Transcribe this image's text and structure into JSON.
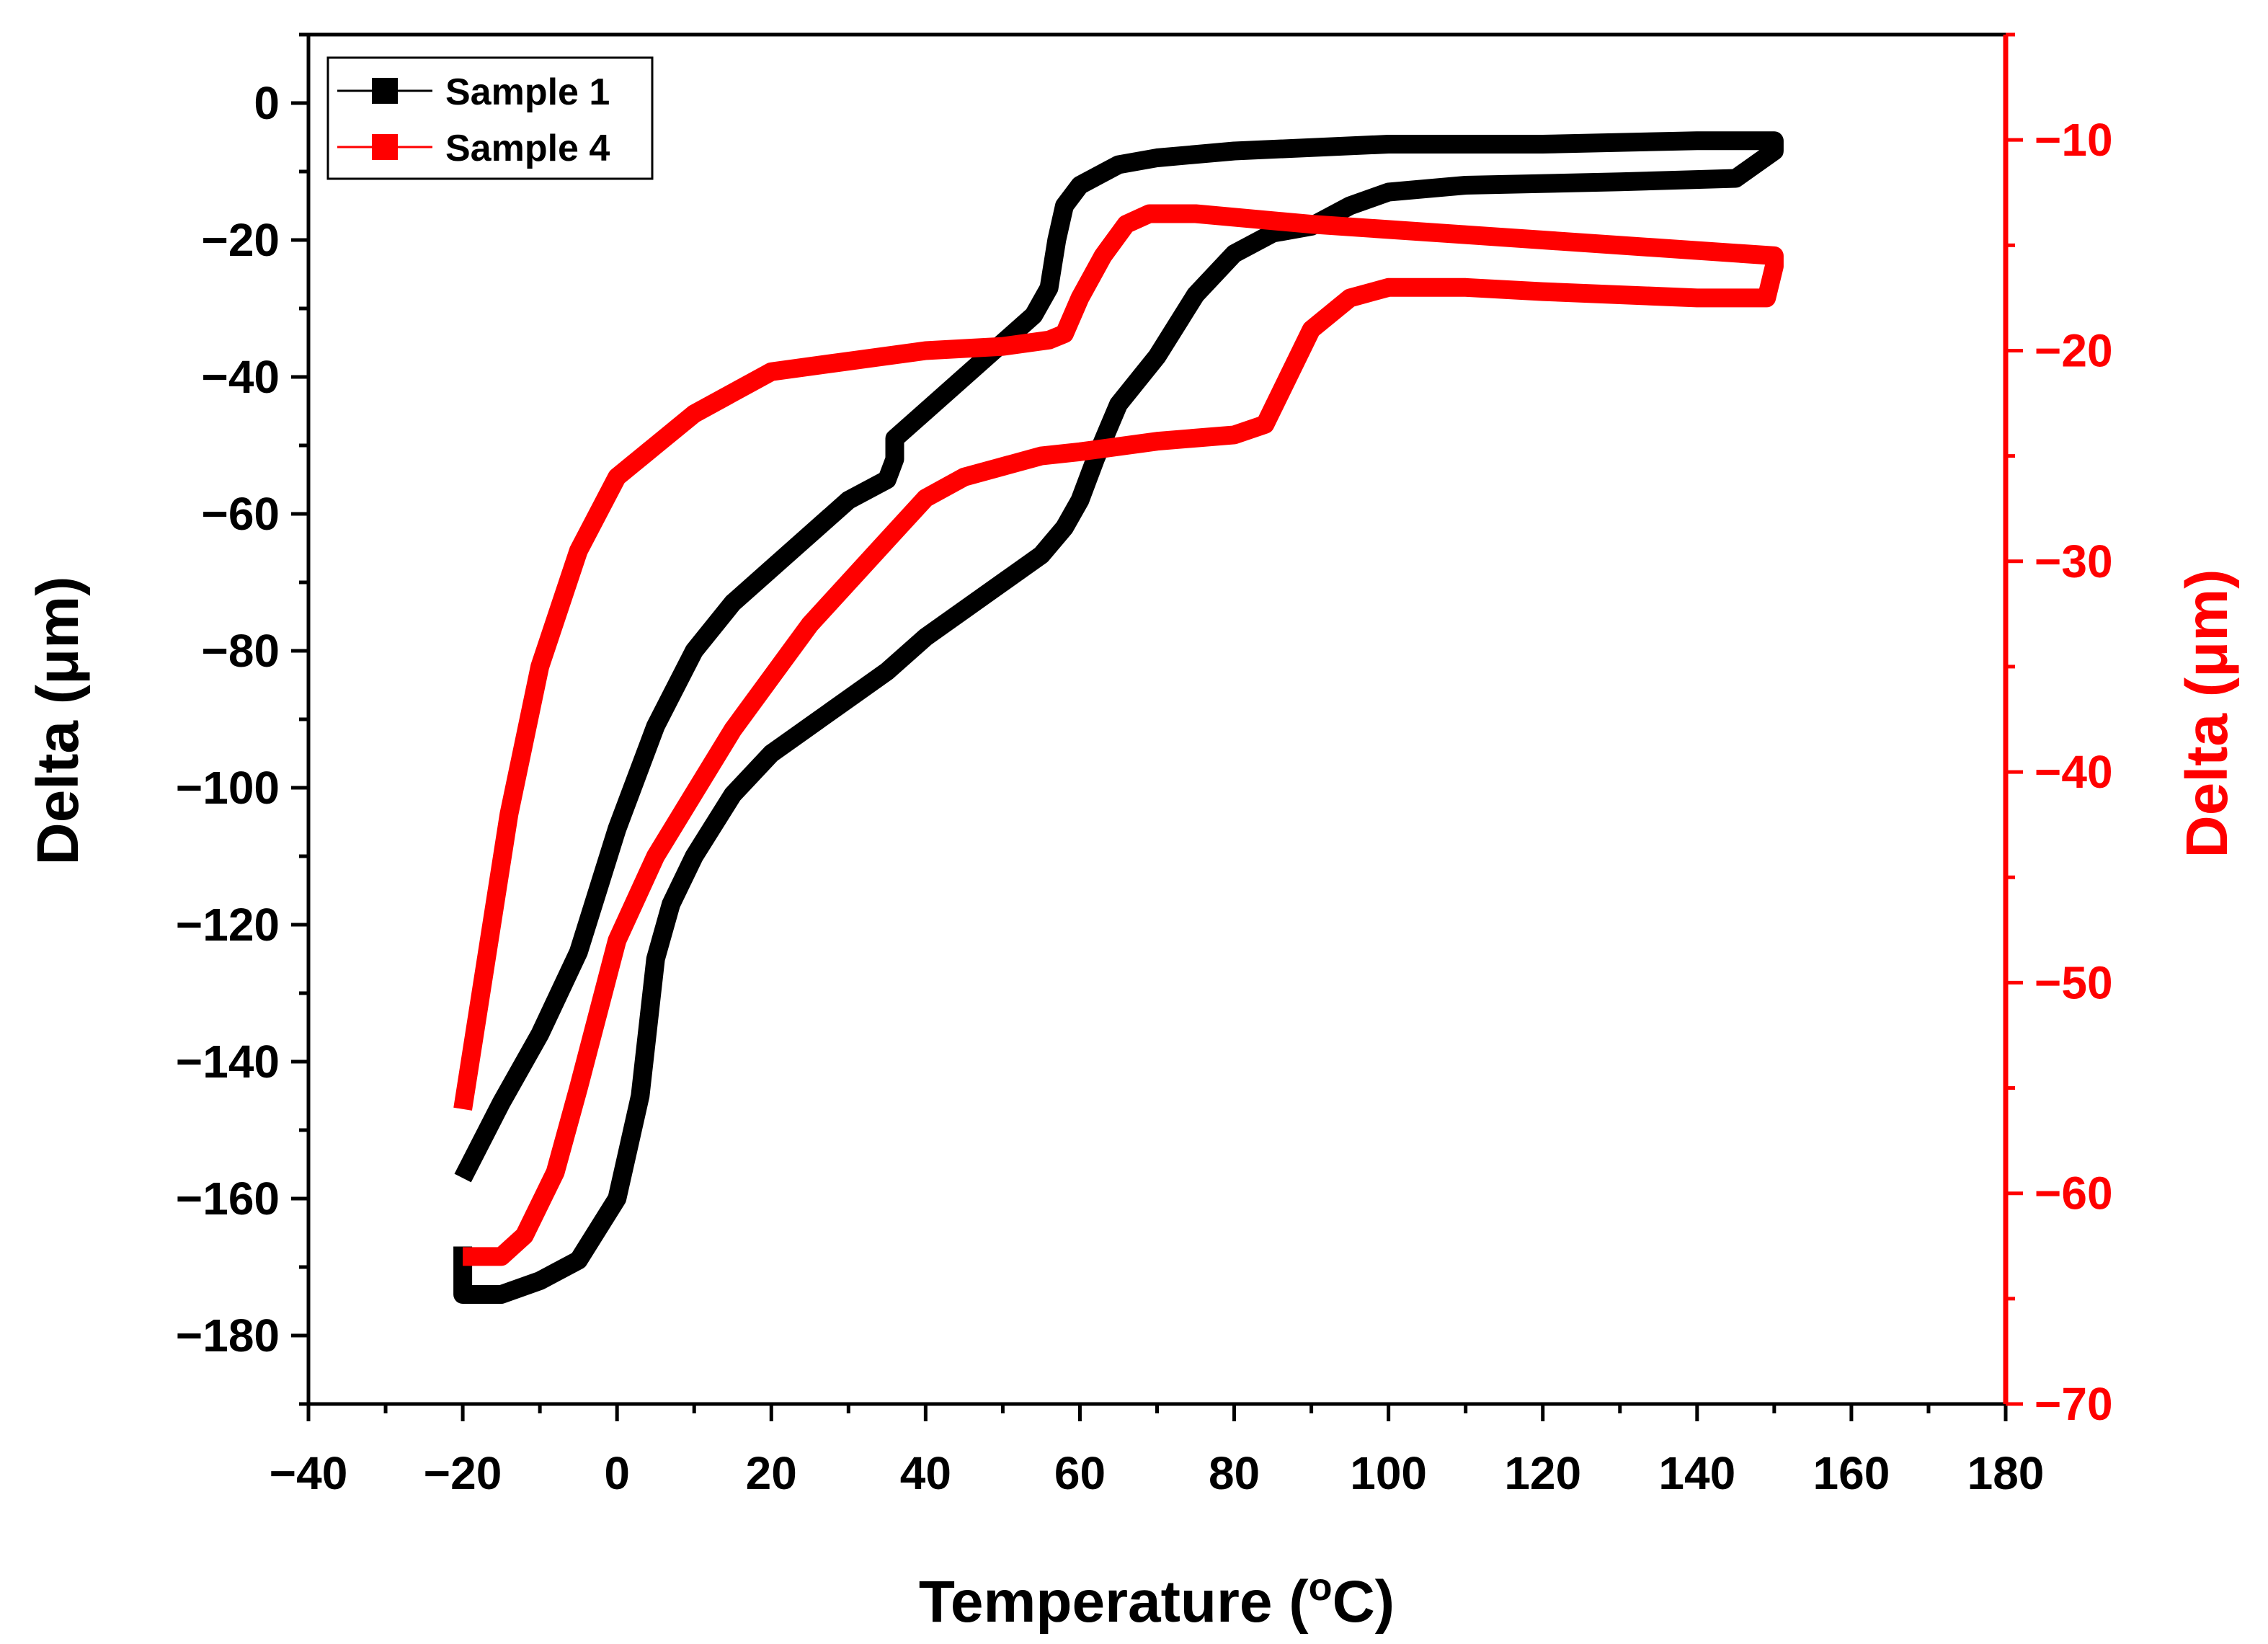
{
  "chart_data": {
    "type": "line",
    "title": "",
    "xlabel": "Temperature (°C)",
    "xlabel_parts": {
      "text": "Temperature (",
      "sup": "o",
      "unit": "C)"
    },
    "ylabel_left": "Delta (μm)",
    "ylabel_right": "Delta (μm)",
    "xlim": [
      -40,
      180
    ],
    "ylim_left": [
      -190,
      10
    ],
    "ylim_right": [
      -70,
      -5
    ],
    "x_ticks": [
      -40,
      -20,
      0,
      20,
      40,
      60,
      80,
      100,
      120,
      140,
      160,
      180
    ],
    "x_tick_labels": [
      "−40",
      "−20",
      "0",
      "20",
      "40",
      "60",
      "80",
      "100",
      "120",
      "140",
      "160",
      "180"
    ],
    "y_left_ticks": [
      0,
      -20,
      -40,
      -60,
      -80,
      -100,
      -120,
      -140,
      -160,
      -180
    ],
    "y_left_tick_labels": [
      "0",
      "−20",
      "−40",
      "−60",
      "−80",
      "−100",
      "−120",
      "−140",
      "−160",
      "−180"
    ],
    "y_right_ticks": [
      -10,
      -20,
      -30,
      -40,
      -50,
      -60,
      -70
    ],
    "y_right_tick_labels": [
      "−10",
      "−20",
      "−30",
      "−40",
      "−50",
      "−60",
      "−70"
    ],
    "legend_position": "top-left",
    "series": [
      {
        "name": "Sample 1",
        "axis": "left",
        "color": "#000000",
        "points": [
          [
            -20,
            -157
          ],
          [
            -15,
            -146
          ],
          [
            -10,
            -136
          ],
          [
            -5,
            -124
          ],
          [
            0,
            -106
          ],
          [
            5,
            -91
          ],
          [
            10,
            -80
          ],
          [
            15,
            -73
          ],
          [
            20,
            -68
          ],
          [
            25,
            -63
          ],
          [
            30,
            -58
          ],
          [
            35,
            -55
          ],
          [
            36,
            -52
          ],
          [
            36,
            -49
          ],
          [
            40,
            -45
          ],
          [
            45,
            -40
          ],
          [
            50,
            -35
          ],
          [
            54,
            -31
          ],
          [
            56,
            -27
          ],
          [
            57,
            -20
          ],
          [
            58,
            -15
          ],
          [
            60,
            -12
          ],
          [
            65,
            -9
          ],
          [
            70,
            -8
          ],
          [
            80,
            -7
          ],
          [
            100,
            -6
          ],
          [
            120,
            -6
          ],
          [
            140,
            -5.5
          ],
          [
            150,
            -5.5
          ],
          [
            150,
            -7
          ],
          [
            145,
            -11
          ],
          [
            130,
            -11.5
          ],
          [
            110,
            -12
          ],
          [
            100,
            -13
          ],
          [
            95,
            -15
          ],
          [
            90,
            -18
          ],
          [
            85,
            -19
          ],
          [
            80,
            -22
          ],
          [
            75,
            -28
          ],
          [
            70,
            -37
          ],
          [
            65,
            -44
          ],
          [
            62,
            -52
          ],
          [
            60,
            -58
          ],
          [
            58,
            -62
          ],
          [
            55,
            -66
          ],
          [
            50,
            -70
          ],
          [
            45,
            -74
          ],
          [
            40,
            -78
          ],
          [
            35,
            -83
          ],
          [
            30,
            -87
          ],
          [
            25,
            -91
          ],
          [
            20,
            -95
          ],
          [
            15,
            -101
          ],
          [
            10,
            -110
          ],
          [
            7,
            -117
          ],
          [
            5,
            -125
          ],
          [
            3,
            -145
          ],
          [
            0,
            -160
          ],
          [
            -5,
            -169
          ],
          [
            -10,
            -172
          ],
          [
            -15,
            -174
          ],
          [
            -20,
            -174
          ],
          [
            -20,
            -167
          ]
        ]
      },
      {
        "name": "Sample 4",
        "axis": "right",
        "color": "#ff0000",
        "points": [
          [
            -20,
            -56
          ],
          [
            -17,
            -49
          ],
          [
            -14,
            -42
          ],
          [
            -10,
            -35
          ],
          [
            -5,
            -29.5
          ],
          [
            0,
            -26
          ],
          [
            5,
            -24.5
          ],
          [
            10,
            -23
          ],
          [
            15,
            -22
          ],
          [
            20,
            -21
          ],
          [
            30,
            -20.5
          ],
          [
            40,
            -20
          ],
          [
            50,
            -19.8
          ],
          [
            56,
            -19.5
          ],
          [
            58,
            -19.2
          ],
          [
            60,
            -17.5
          ],
          [
            63,
            -15.5
          ],
          [
            66,
            -14
          ],
          [
            69,
            -13.5
          ],
          [
            75,
            -13.5
          ],
          [
            90,
            -14
          ],
          [
            110,
            -14.5
          ],
          [
            130,
            -15
          ],
          [
            150,
            -15.5
          ],
          [
            150,
            -16
          ],
          [
            149,
            -17.5
          ],
          [
            140,
            -17.5
          ],
          [
            120,
            -17.2
          ],
          [
            110,
            -17
          ],
          [
            100,
            -17
          ],
          [
            95,
            -17.5
          ],
          [
            90,
            -19
          ],
          [
            86,
            -22
          ],
          [
            84,
            -23.5
          ],
          [
            80,
            -24
          ],
          [
            70,
            -24.3
          ],
          [
            60,
            -24.8
          ],
          [
            55,
            -25
          ],
          [
            50,
            -25.5
          ],
          [
            45,
            -26
          ],
          [
            40,
            -27
          ],
          [
            35,
            -29
          ],
          [
            30,
            -31
          ],
          [
            25,
            -33
          ],
          [
            20,
            -35.5
          ],
          [
            15,
            -38
          ],
          [
            10,
            -41
          ],
          [
            5,
            -44
          ],
          [
            0,
            -48
          ],
          [
            -5,
            -55
          ],
          [
            -8,
            -59
          ],
          [
            -12,
            -62
          ],
          [
            -15,
            -63
          ],
          [
            -20,
            -63
          ]
        ]
      }
    ]
  }
}
